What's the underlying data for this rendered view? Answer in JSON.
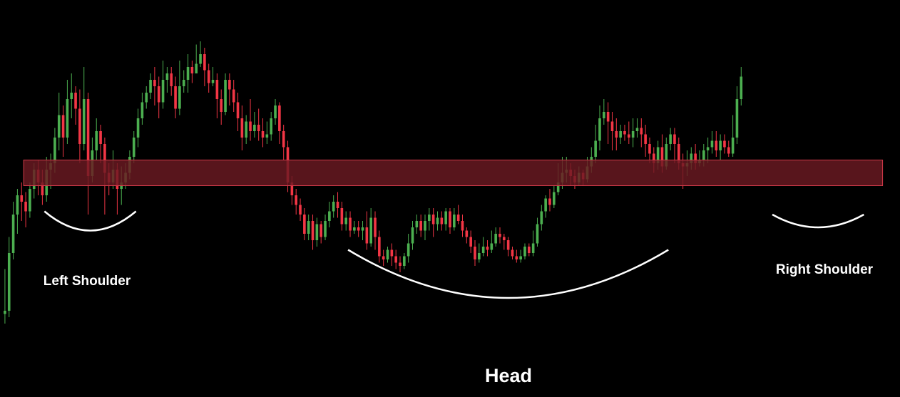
{
  "colors": {
    "background": "#000000",
    "bullish": "#4caf50",
    "bearish": "#f23645",
    "zone_fill": "#6b1a22",
    "zone_stroke": "#d23a4a",
    "arc": "#ffffff",
    "text": "#ffffff"
  },
  "chart_data": {
    "type": "candlestick",
    "title": "",
    "xlabel": "",
    "ylabel": "",
    "x_range": [
      0,
      215
    ],
    "ylim": [
      0,
      100
    ],
    "grid": false,
    "annotations": [
      {
        "id": "left-shoulder",
        "text": "Left Shoulder",
        "arc_from": 10,
        "arc_to": 32,
        "arc_level": 43,
        "arc_depth": 6
      },
      {
        "id": "head",
        "text": "Head",
        "arc_from": 83,
        "arc_to": 160,
        "arc_level": 31,
        "arc_depth": 15
      },
      {
        "id": "right-shoulder",
        "text": "Right Shoulder",
        "arc_from": 185,
        "arc_to": 207,
        "arc_level": 42,
        "arc_depth": 4
      }
    ],
    "zone": {
      "label": "",
      "x_from": 5,
      "x_to": 211.5,
      "y_low": 51,
      "y_high": 59
    },
    "candles": [
      [
        11,
        12,
        25,
        8
      ],
      [
        12,
        30,
        35,
        10
      ],
      [
        30,
        42,
        46,
        28
      ],
      [
        42,
        48,
        50,
        36
      ],
      [
        48,
        46,
        52,
        40
      ],
      [
        46,
        43,
        49,
        38
      ],
      [
        43,
        50,
        52,
        41
      ],
      [
        50,
        56,
        58,
        47
      ],
      [
        56,
        52,
        59,
        48
      ],
      [
        52,
        48,
        56,
        45
      ],
      [
        48,
        56,
        60,
        46
      ],
      [
        56,
        58,
        61,
        50
      ],
      [
        58,
        66,
        69,
        55
      ],
      [
        66,
        73,
        80,
        62
      ],
      [
        73,
        66,
        76,
        60
      ],
      [
        66,
        78,
        84,
        64
      ],
      [
        78,
        80,
        86,
        72
      ],
      [
        80,
        75,
        82,
        70
      ],
      [
        75,
        64,
        81,
        58
      ],
      [
        64,
        78,
        88,
        62
      ],
      [
        78,
        54,
        80,
        42
      ],
      [
        54,
        62,
        66,
        52
      ],
      [
        62,
        68,
        72,
        59
      ],
      [
        68,
        64,
        70,
        58
      ],
      [
        64,
        55,
        66,
        42
      ],
      [
        55,
        52,
        58,
        48
      ],
      [
        52,
        56,
        62,
        50
      ],
      [
        56,
        50,
        58,
        42
      ],
      [
        50,
        52,
        57,
        45
      ],
      [
        52,
        55,
        58,
        50
      ],
      [
        55,
        60,
        62,
        53
      ],
      [
        60,
        66,
        68,
        58
      ],
      [
        66,
        72,
        75,
        63
      ],
      [
        72,
        77,
        80,
        70
      ],
      [
        77,
        80,
        82,
        75
      ],
      [
        80,
        84,
        86,
        78
      ],
      [
        84,
        82,
        88,
        76
      ],
      [
        82,
        77,
        85,
        72
      ],
      [
        77,
        84,
        90,
        75
      ],
      [
        84,
        86,
        88,
        80
      ],
      [
        86,
        82,
        88,
        79
      ],
      [
        82,
        75,
        85,
        72
      ],
      [
        75,
        82,
        90,
        73
      ],
      [
        82,
        84,
        87,
        80
      ],
      [
        84,
        88,
        92,
        80
      ],
      [
        88,
        86,
        90,
        83
      ],
      [
        86,
        89,
        95,
        86
      ],
      [
        89,
        92,
        96,
        88
      ],
      [
        92,
        87,
        94,
        82
      ],
      [
        87,
        83,
        89,
        80
      ],
      [
        83,
        84,
        88,
        82
      ],
      [
        84,
        78,
        86,
        72
      ],
      [
        78,
        74,
        81,
        70
      ],
      [
        74,
        84,
        86,
        73
      ],
      [
        84,
        81,
        86,
        76
      ],
      [
        81,
        77,
        84,
        74
      ],
      [
        77,
        72,
        80,
        68
      ],
      [
        72,
        66,
        76,
        62
      ],
      [
        66,
        71,
        73,
        64
      ],
      [
        71,
        68,
        78,
        65
      ],
      [
        68,
        70,
        74,
        66
      ],
      [
        70,
        68,
        75,
        65
      ],
      [
        68,
        66,
        72,
        63
      ],
      [
        66,
        67,
        71,
        64
      ],
      [
        67,
        72,
        74,
        65
      ],
      [
        72,
        76,
        78,
        70
      ],
      [
        76,
        68,
        77,
        64
      ],
      [
        68,
        63,
        70,
        59
      ],
      [
        63,
        52,
        65,
        49
      ],
      [
        52,
        48,
        54,
        45
      ],
      [
        48,
        45,
        50,
        42
      ],
      [
        45,
        42,
        47,
        40
      ],
      [
        42,
        36,
        44,
        34
      ],
      [
        36,
        40,
        42,
        34
      ],
      [
        40,
        34,
        42,
        31
      ],
      [
        34,
        39,
        41,
        32
      ],
      [
        39,
        35,
        40,
        33
      ],
      [
        35,
        40,
        42,
        34
      ],
      [
        40,
        43,
        46,
        38
      ],
      [
        43,
        46,
        48,
        41
      ],
      [
        46,
        44,
        49,
        41
      ],
      [
        44,
        39,
        46,
        37
      ],
      [
        39,
        41,
        43,
        37
      ],
      [
        41,
        37,
        43,
        35
      ],
      [
        37,
        38,
        40,
        36
      ],
      [
        38,
        37,
        40,
        35
      ],
      [
        37,
        38,
        40,
        34
      ],
      [
        38,
        33,
        43,
        31
      ],
      [
        33,
        41,
        44,
        32
      ],
      [
        41,
        35,
        43,
        31
      ],
      [
        35,
        29,
        37,
        27
      ],
      [
        29,
        28,
        31,
        26
      ],
      [
        28,
        31,
        32,
        27
      ],
      [
        31,
        29,
        33,
        26
      ],
      [
        29,
        27,
        31,
        25
      ],
      [
        27,
        26,
        29,
        24
      ],
      [
        26,
        29,
        30,
        25
      ],
      [
        29,
        33,
        36,
        27
      ],
      [
        33,
        38,
        40,
        31
      ],
      [
        38,
        40,
        42,
        36
      ],
      [
        40,
        37,
        42,
        35
      ],
      [
        37,
        40,
        42,
        34
      ],
      [
        40,
        42,
        44,
        37
      ],
      [
        42,
        39,
        44,
        35
      ],
      [
        39,
        41,
        43,
        37
      ],
      [
        41,
        39,
        43,
        37
      ],
      [
        39,
        43,
        44,
        37
      ],
      [
        43,
        38,
        44,
        36
      ],
      [
        38,
        42,
        44,
        37
      ],
      [
        42,
        40,
        45,
        39
      ],
      [
        40,
        37,
        42,
        35
      ],
      [
        37,
        35,
        38,
        33
      ],
      [
        35,
        32,
        37,
        30
      ],
      [
        32,
        28,
        34,
        26
      ],
      [
        28,
        30,
        33,
        27
      ],
      [
        30,
        32,
        35,
        29
      ],
      [
        32,
        31,
        34,
        29
      ],
      [
        31,
        33,
        37,
        30
      ],
      [
        33,
        36,
        38,
        32
      ],
      [
        36,
        35,
        38,
        33
      ],
      [
        35,
        34,
        36,
        31
      ],
      [
        34,
        31,
        35,
        29
      ],
      [
        31,
        29,
        32,
        28
      ],
      [
        29,
        28,
        31,
        27
      ],
      [
        28,
        29,
        31,
        27
      ],
      [
        29,
        32,
        33,
        28
      ],
      [
        32,
        30,
        33,
        29
      ],
      [
        30,
        33,
        37,
        29
      ],
      [
        33,
        39,
        41,
        32
      ],
      [
        39,
        43,
        45,
        37
      ],
      [
        43,
        47,
        48,
        41
      ],
      [
        47,
        45,
        50,
        43
      ],
      [
        45,
        49,
        51,
        44
      ],
      [
        49,
        52,
        58,
        48
      ],
      [
        52,
        55,
        60,
        50
      ],
      [
        55,
        56,
        60,
        52
      ],
      [
        56,
        54,
        58,
        51
      ],
      [
        54,
        52,
        56,
        50
      ],
      [
        52,
        55,
        57,
        51
      ],
      [
        55,
        53,
        56,
        51
      ],
      [
        53,
        57,
        60,
        52
      ],
      [
        57,
        60,
        63,
        55
      ],
      [
        60,
        65,
        70,
        58
      ],
      [
        65,
        72,
        76,
        62
      ],
      [
        72,
        74,
        78,
        70
      ],
      [
        74,
        71,
        77,
        64
      ],
      [
        71,
        68,
        74,
        62
      ],
      [
        68,
        66,
        72,
        62
      ],
      [
        66,
        68,
        70,
        64
      ],
      [
        68,
        67,
        70,
        65
      ],
      [
        67,
        66,
        71,
        64
      ],
      [
        66,
        68,
        72,
        63
      ],
      [
        68,
        69,
        72,
        66
      ],
      [
        69,
        67,
        72,
        63
      ],
      [
        67,
        64,
        70,
        60
      ],
      [
        64,
        61,
        66,
        58
      ],
      [
        61,
        58,
        63,
        55
      ],
      [
        58,
        63,
        65,
        56
      ],
      [
        63,
        57,
        67,
        55
      ],
      [
        57,
        64,
        66,
        56
      ],
      [
        64,
        67,
        69,
        62
      ],
      [
        67,
        64,
        69,
        58
      ],
      [
        64,
        58,
        66,
        56
      ],
      [
        58,
        57,
        61,
        50
      ],
      [
        57,
        58,
        62,
        54
      ],
      [
        58,
        61,
        63,
        56
      ],
      [
        61,
        58,
        64,
        56
      ],
      [
        58,
        59,
        62,
        57
      ],
      [
        59,
        62,
        64,
        57
      ],
      [
        62,
        63,
        66,
        58
      ],
      [
        63,
        65,
        68,
        61
      ],
      [
        65,
        62,
        68,
        60
      ],
      [
        62,
        65,
        67,
        59
      ],
      [
        65,
        63,
        67,
        61
      ],
      [
        63,
        61,
        65,
        60
      ],
      [
        61,
        66,
        73,
        60
      ],
      [
        66,
        78,
        82,
        64
      ],
      [
        78,
        85,
        88,
        76
      ]
    ]
  }
}
